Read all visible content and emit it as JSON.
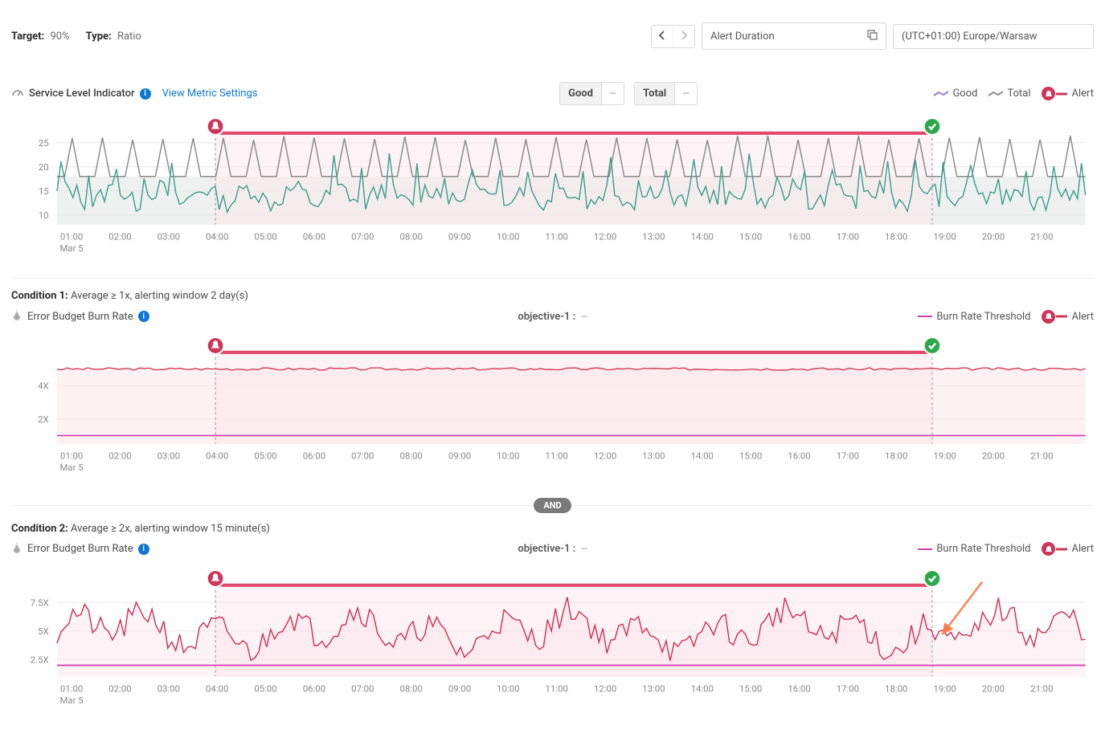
{
  "colors": {
    "text": "#4a4a4a",
    "textMuted": "#888888",
    "link": "#0d76d6",
    "goodLine": "#3fa08c",
    "totalLine": "#8a8a8a",
    "alertBadge": "#d0345a",
    "alertBandFill": "#fbe7ed",
    "alertBandStroke": "#e04a6c",
    "okBadge": "#2aa84a",
    "burnLine": "#d0345a",
    "thresholdLine": "#d83ab0",
    "gridLine": "#e6e6e6",
    "axisText": "#888888",
    "chartAreaFill": "#eef1f0",
    "arrow": "#ff7a4a"
  },
  "topbar": {
    "targetLabel": "Target:",
    "targetValue": "90%",
    "typeLabel": "Type:",
    "typeValue": "Ratio",
    "durationPlaceholder": "Alert Duration",
    "tz": "(UTC+01:00) Europe/Warsaw"
  },
  "sli": {
    "title": "Service Level Indicator",
    "viewLink": "View Metric Settings",
    "good": {
      "label": "Good",
      "value": "--"
    },
    "total": {
      "label": "Total",
      "value": "--"
    },
    "legend": {
      "good": "Good",
      "total": "Total",
      "alert": "Alert"
    },
    "chart": {
      "yTicks": [
        10,
        15,
        20,
        25
      ],
      "yMin": 8,
      "yMax": 27,
      "xLabels": [
        "01:00",
        "02:00",
        "03:00",
        "04:00",
        "05:00",
        "06:00",
        "07:00",
        "08:00",
        "09:00",
        "10:00",
        "11:00",
        "12:00",
        "13:00",
        "14:00",
        "15:00",
        "16:00",
        "17:00",
        "18:00",
        "19:00",
        "20:00",
        "21:00"
      ],
      "xSubLabel": "Mar 5",
      "alertStart": 0.154,
      "alertEnd": 0.851,
      "totalPeaks": 34,
      "totalLow": 18,
      "totalHigh": 26,
      "goodBase": 14,
      "goodAmp": 3
    }
  },
  "cond1": {
    "title": "Condition 1:",
    "desc": "Average ≥ 1x, alerting window 2 day(s)",
    "metricTitle": "Error Budget Burn Rate",
    "objective": "objective-1 :",
    "objectiveVal": "--",
    "legend": {
      "threshold": "Burn Rate Threshold",
      "alert": "Alert"
    },
    "chart": {
      "yTicks": [
        "2X",
        "4X"
      ],
      "yVals": [
        2,
        4
      ],
      "yMin": 0.5,
      "yMax": 6,
      "xLabels": [
        "01:00",
        "02:00",
        "03:00",
        "04:00",
        "05:00",
        "06:00",
        "07:00",
        "08:00",
        "09:00",
        "10:00",
        "11:00",
        "12:00",
        "13:00",
        "14:00",
        "15:00",
        "16:00",
        "17:00",
        "18:00",
        "19:00",
        "20:00",
        "21:00"
      ],
      "xSubLabel": "Mar 5",
      "alertStart": 0.154,
      "alertEnd": 0.851,
      "burnLevel": 5.0,
      "threshold": 1.0
    }
  },
  "andLabel": "AND",
  "cond2": {
    "title": "Condition 2:",
    "desc": "Average ≥ 2x, alerting window 15 minute(s)",
    "metricTitle": "Error Budget Burn Rate",
    "objective": "objective-1 :",
    "objectiveVal": "--",
    "legend": {
      "threshold": "Burn Rate Threshold",
      "alert": "Alert"
    },
    "chart": {
      "yTicks": [
        "2.5X",
        "5X",
        "7.5X"
      ],
      "yVals": [
        2.5,
        5,
        7.5
      ],
      "yMin": 1,
      "yMax": 9,
      "xLabels": [
        "01:00",
        "02:00",
        "03:00",
        "04:00",
        "05:00",
        "06:00",
        "07:00",
        "08:00",
        "09:00",
        "10:00",
        "11:00",
        "12:00",
        "13:00",
        "14:00",
        "15:00",
        "16:00",
        "17:00",
        "18:00",
        "19:00",
        "20:00",
        "21:00"
      ],
      "xSubLabel": "Mar 5",
      "alertStart": 0.154,
      "alertEnd": 0.851,
      "burnBase": 5.0,
      "burnAmp": 2.5,
      "threshold": 2.0
    }
  }
}
